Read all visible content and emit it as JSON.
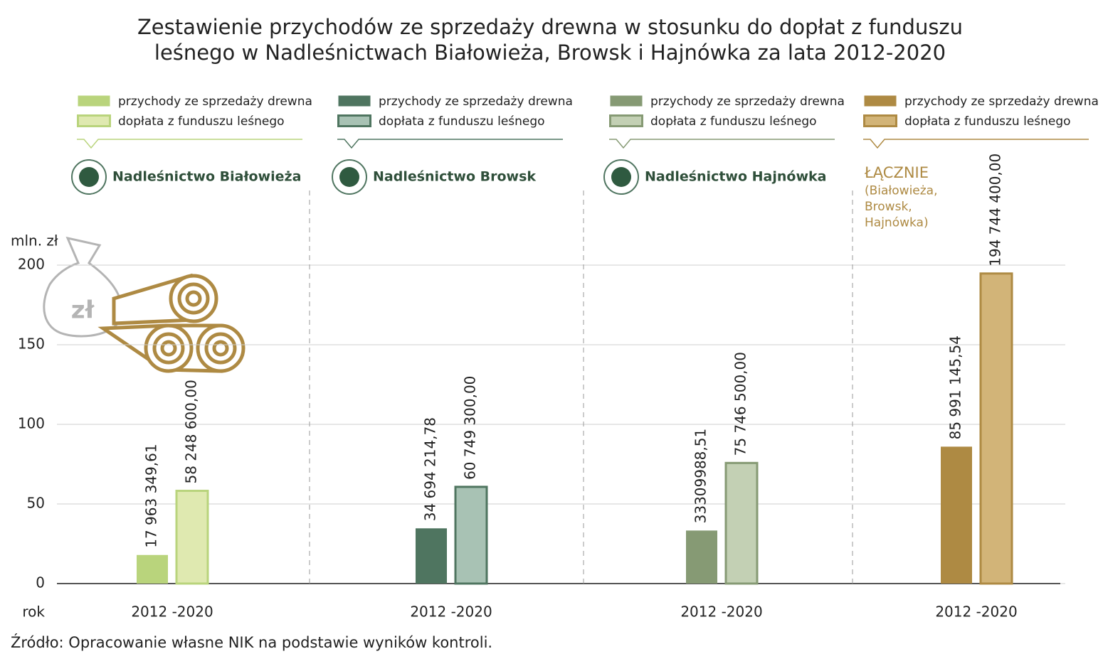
{
  "chart_data": {
    "type": "bar",
    "title": [
      "Zestawienie przychodów ze sprzedaży drewna w stosunku do dopłat z funduszu",
      "leśnego w Nadleśnictwach Białowieża, Browsk i Hajnówka za lata 2012-2020"
    ],
    "y_label": "mln. zł",
    "x_label": "rok",
    "icon_label": "zł",
    "source": "Źródło: Opracowanie własne NIK na podstawie wyników kontroli.",
    "ylim": [
      0,
      200
    ],
    "yticks": [
      0,
      50,
      100,
      150,
      200
    ],
    "grid": true,
    "groups": [
      {
        "title": [
          "Nadleśnictwo Białowieża"
        ],
        "legend": [
          "przychody ze sprzedaży drewna",
          "dopłata z funduszu leśnego"
        ],
        "category": "2012 -2020",
        "values": [
          17.96334961,
          58.2486
        ],
        "value_labels": [
          "17 963 349,61",
          "58 248 600,00"
        ],
        "colors": [
          "#b9d47c",
          "#dfe9b0"
        ]
      },
      {
        "title": [
          "Nadleśnictwo Browsk"
        ],
        "legend": [
          "przychody ze sprzedaży drewna",
          "dopłata z funduszu leśnego"
        ],
        "category": "2012 -2020",
        "values": [
          34.69421478,
          60.7493
        ],
        "value_labels": [
          "34 694 214,78",
          "60 749 300,00"
        ],
        "colors": [
          "#4f7560",
          "#a8c2b4"
        ]
      },
      {
        "title": [
          "Nadleśnictwo Hajnówka"
        ],
        "legend": [
          "przychody ze sprzedaży drewna",
          "dopłata z funduszu leśnego"
        ],
        "category": "2012 -2020",
        "values": [
          33.30998851,
          75.7465
        ],
        "value_labels": [
          "33309988,51",
          "75 746 500,00"
        ],
        "colors": [
          "#869a74",
          "#c3d0b4"
        ]
      },
      {
        "title": [
          "ŁĄCZNIE",
          "(Białowieża,",
          "Browsk,",
          "Hajnówka)"
        ],
        "legend": [
          "przychody ze sprzedaży drewna",
          "dopłata z funduszu leśnego"
        ],
        "category": "2012 -2020",
        "values": [
          85.99114554,
          194.7444
        ],
        "value_labels": [
          "85 991 145,54",
          "194 744 400,00"
        ],
        "colors": [
          "#ae8a43",
          "#d2b478"
        ]
      }
    ]
  }
}
